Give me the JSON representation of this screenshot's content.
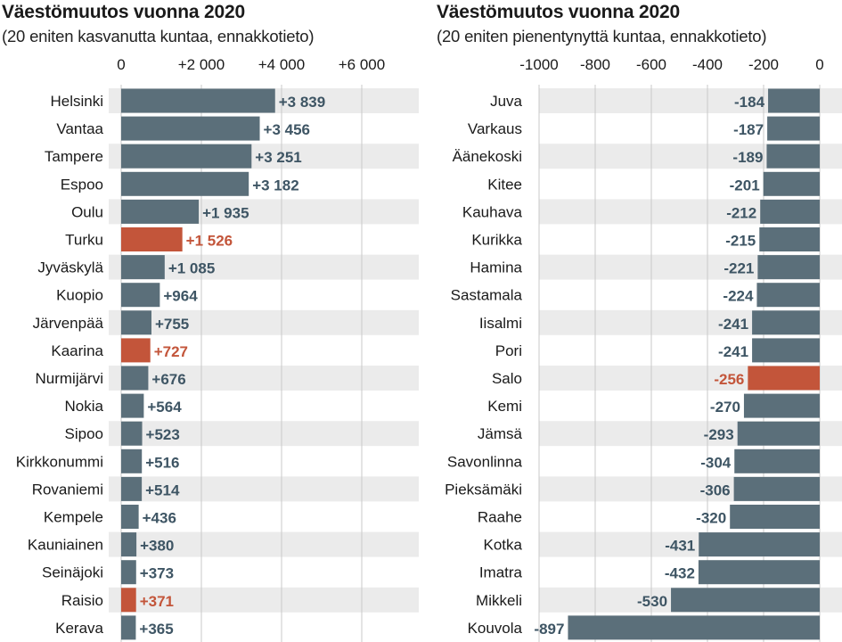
{
  "colors": {
    "bar": "#5b6f7a",
    "highlight": "#c3553a",
    "band": "#ebebeb",
    "grid": "#c9c9c9",
    "value_text": "#3e5564",
    "value_highlight_text": "#c3553a"
  },
  "left": {
    "title": "Väestömuutos vuonna 2020",
    "subtitle": "(20 eniten kasvanutta kuntaa, ennakkotieto)"
  },
  "right": {
    "title": "Väestömuutos vuonna 2020",
    "subtitle": "(20 eniten pienentynyttä kuntaa, ennakkotieto)"
  },
  "chart_data": [
    {
      "type": "bar",
      "orientation": "horizontal",
      "title": "Väestömuutos vuonna 2020",
      "subtitle": "(20 eniten kasvanutta kuntaa, ennakkotieto)",
      "xlim": [
        0,
        6000
      ],
      "grid": true,
      "ticks": [
        0,
        2000,
        4000,
        6000
      ],
      "tick_labels": [
        "0",
        "+2 000",
        "+4 000",
        "+6 000"
      ],
      "categories": [
        "Helsinki",
        "Vantaa",
        "Tampere",
        "Espoo",
        "Oulu",
        "Turku",
        "Jyväskylä",
        "Kuopio",
        "Järvenpää",
        "Kaarina",
        "Nurmijärvi",
        "Nokia",
        "Sipoo",
        "Kirkkonummi",
        "Rovaniemi",
        "Kempele",
        "Kauniainen",
        "Seinäjoki",
        "Raisio",
        "Kerava"
      ],
      "values": [
        3839,
        3456,
        3251,
        3182,
        1935,
        1526,
        1085,
        964,
        755,
        727,
        676,
        564,
        523,
        516,
        514,
        436,
        380,
        373,
        371,
        365
      ],
      "value_labels": [
        "+3 839",
        "+3 456",
        "+3 251",
        "+3 182",
        "+1 935",
        "+1 526",
        "+1 085",
        "+964",
        "+755",
        "+727",
        "+676",
        "+564",
        "+523",
        "+516",
        "+514",
        "+436",
        "+380",
        "+373",
        "+371",
        "+365"
      ],
      "highlighted": [
        "Turku",
        "Kaarina",
        "Raisio"
      ]
    },
    {
      "type": "bar",
      "orientation": "horizontal",
      "title": "Väestömuutos vuonna 2020",
      "subtitle": "(20 eniten pienentynyttä kuntaa, ennakkotieto)",
      "xlim": [
        -1000,
        0
      ],
      "grid": true,
      "ticks": [
        -1000,
        -800,
        -600,
        -400,
        -200,
        0
      ],
      "tick_labels": [
        "-1000",
        "-800",
        "-600",
        "-400",
        "-200",
        "0"
      ],
      "categories": [
        "Juva",
        "Varkaus",
        "Äänekoski",
        "Kitee",
        "Kauhava",
        "Kurikka",
        "Hamina",
        "Sastamala",
        "Iisalmi",
        "Pori",
        "Salo",
        "Kemi",
        "Jämsä",
        "Savonlinna",
        "Pieksämäki",
        "Raahe",
        "Kotka",
        "Imatra",
        "Mikkeli",
        "Kouvola"
      ],
      "values": [
        -184,
        -187,
        -189,
        -201,
        -212,
        -215,
        -221,
        -224,
        -241,
        -241,
        -256,
        -270,
        -293,
        -304,
        -306,
        -320,
        -431,
        -432,
        -530,
        -897
      ],
      "value_labels": [
        "-184",
        "-187",
        "-189",
        "-201",
        "-212",
        "-215",
        "-221",
        "-224",
        "-241",
        "-241",
        "-256",
        "-270",
        "-293",
        "-304",
        "-306",
        "-320",
        "-431",
        "-432",
        "-530",
        "-897"
      ],
      "highlighted": [
        "Salo"
      ]
    }
  ]
}
